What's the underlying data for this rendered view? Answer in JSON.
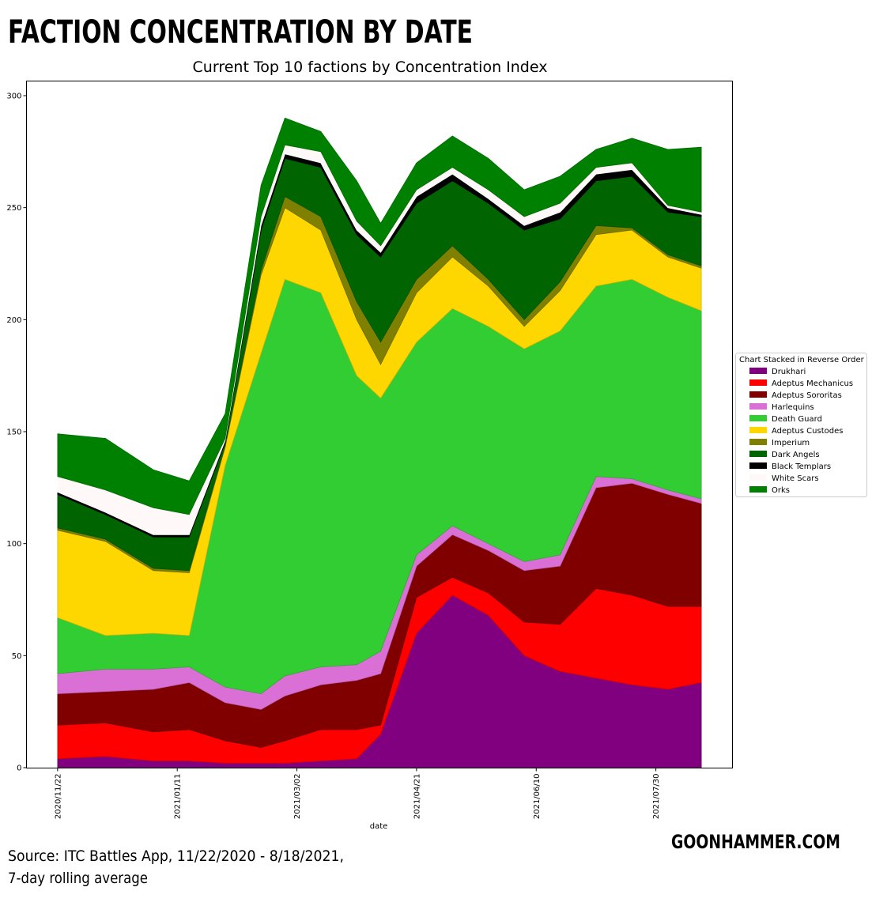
{
  "header": {
    "title": "FACTION CONCENTRATION BY DATE",
    "source_line1": "Source: ITC Battles App, 11/22/2020 - 8/18/2021,",
    "source_line2": "7-day rolling average",
    "brand": "GOONHAMMER.COM"
  },
  "chart_data": {
    "type": "area",
    "stacked": true,
    "title": "Current Top 10 factions by Concentration Index",
    "xlabel": "date",
    "ylabel": "",
    "ylim": [
      0,
      300
    ],
    "yticks": [
      0,
      50,
      100,
      150,
      200,
      250,
      300
    ],
    "xticks": [
      "2020/11/22",
      "2021/01/11",
      "2021/03/02",
      "2021/04/21",
      "2021/06/10",
      "2021/07/30"
    ],
    "xlim": [
      "2020/11/09",
      "2021/08/31"
    ],
    "grid": false,
    "legend_title": "Chart Stacked in Reverse Order",
    "legend_placement": "right",
    "x": [
      "2020/11/22",
      "2020/12/12",
      "2021/01/01",
      "2021/01/16",
      "2021/01/31",
      "2021/02/15",
      "2021/02/25",
      "2021/03/12",
      "2021/03/27",
      "2021/04/06",
      "2021/04/21",
      "2021/05/06",
      "2021/05/21",
      "2021/06/05",
      "2021/06/20",
      "2021/07/05",
      "2021/07/20",
      "2021/08/04",
      "2021/08/18"
    ],
    "series": [
      {
        "name": "Drukhari",
        "color": "#800080",
        "values": [
          4,
          5,
          3,
          3,
          2,
          2,
          2,
          3,
          4,
          15,
          60,
          77,
          68,
          50,
          43,
          40,
          37,
          35,
          38
        ]
      },
      {
        "name": "Adeptus Mechanicus",
        "color": "#ff0000",
        "values": [
          15,
          15,
          13,
          14,
          10,
          7,
          10,
          14,
          13,
          4,
          16,
          8,
          10,
          15,
          21,
          40,
          40,
          37,
          34
        ]
      },
      {
        "name": "Adeptus Sororitas",
        "color": "#800000",
        "values": [
          14,
          14,
          19,
          21,
          17,
          17,
          20,
          20,
          22,
          23,
          14,
          19,
          19,
          23,
          26,
          45,
          50,
          50,
          46
        ]
      },
      {
        "name": "Harlequins",
        "color": "#da70d6",
        "values": [
          9,
          10,
          9,
          7,
          7,
          7,
          9,
          8,
          7,
          10,
          5,
          4,
          3,
          4,
          5,
          5,
          2,
          2,
          2
        ]
      },
      {
        "name": "Death Guard",
        "color": "#32cd32",
        "values": [
          25,
          15,
          16,
          14,
          99,
          152,
          177,
          167,
          129,
          113,
          95,
          97,
          97,
          95,
          100,
          85,
          89,
          86,
          84
        ]
      },
      {
        "name": "Adeptus Custodes",
        "color": "#ffd700",
        "values": [
          39,
          42,
          28,
          28,
          8,
          35,
          32,
          28,
          25,
          15,
          22,
          23,
          18,
          10,
          18,
          23,
          22,
          18,
          19
        ]
      },
      {
        "name": "Imperium",
        "color": "#808000",
        "values": [
          1,
          1,
          1,
          1,
          1,
          2,
          5,
          6,
          8,
          10,
          6,
          5,
          3,
          3,
          4,
          4,
          1,
          1,
          1
        ]
      },
      {
        "name": "Dark Angels",
        "color": "#006400",
        "values": [
          15,
          11,
          14,
          15,
          1,
          18,
          17,
          22,
          30,
          38,
          34,
          29,
          34,
          40,
          28,
          20,
          23,
          19,
          22
        ]
      },
      {
        "name": "Black Templars",
        "color": "#000000",
        "values": [
          1,
          1,
          1,
          1,
          1,
          2,
          2,
          2,
          2,
          2,
          3,
          3,
          2,
          2,
          3,
          3,
          3,
          2,
          1
        ]
      },
      {
        "name": "White Scars",
        "color": "#fff8f8",
        "values": [
          7,
          10,
          12,
          9,
          1,
          4,
          4,
          5,
          4,
          3,
          3,
          3,
          4,
          4,
          4,
          3,
          3,
          1,
          1
        ]
      },
      {
        "name": "Orks",
        "color": "#008000",
        "values": [
          19,
          23,
          17,
          15,
          11,
          14,
          12,
          9,
          18,
          10,
          12,
          14,
          14,
          12,
          12,
          8,
          11,
          25,
          29
        ]
      }
    ]
  }
}
